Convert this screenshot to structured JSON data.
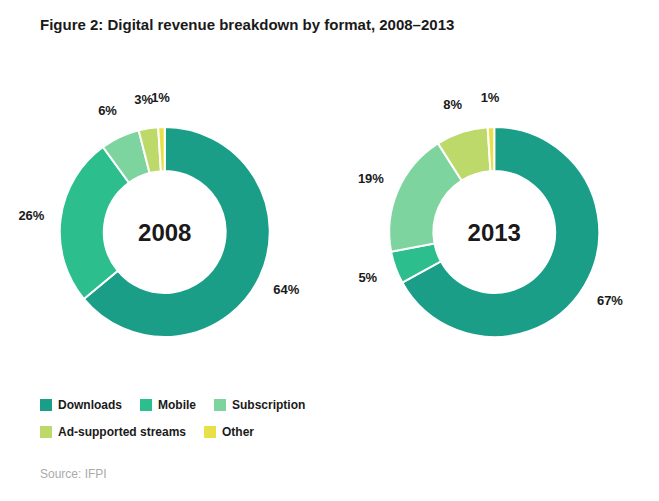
{
  "chart_data": {
    "type": "donut",
    "title": "Figure 2: Digital revenue breakdown by format, 2008–2013",
    "categories": [
      "Downloads",
      "Mobile",
      "Subscription",
      "Ad-supported streams",
      "Other"
    ],
    "colors": [
      "#1a9e87",
      "#2dbe8e",
      "#7dd49e",
      "#bcd96a",
      "#e8e048"
    ],
    "series": [
      {
        "name": "2008",
        "values": [
          64,
          26,
          6,
          3,
          1
        ],
        "value_labels": [
          "64%",
          "26%",
          "6%",
          "3%",
          "1%"
        ]
      },
      {
        "name": "2013",
        "values": [
          67,
          5,
          19,
          8,
          1
        ],
        "value_labels": [
          "67%",
          "5%",
          "19%",
          "8%",
          "1%"
        ]
      }
    ],
    "data_labels": true,
    "legend": "bottom",
    "annotations": [
      "Source: IFPI"
    ]
  }
}
